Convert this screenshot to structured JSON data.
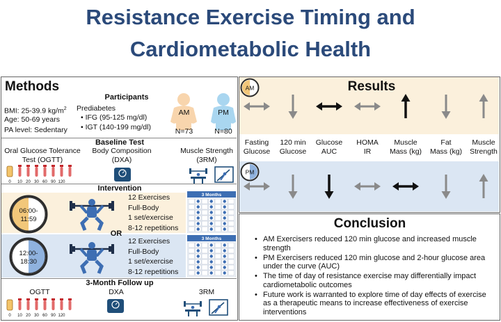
{
  "title": {
    "line1": "Resistance Exercise Timing and",
    "line2": "Cardiometabolic Health"
  },
  "colors": {
    "title_blue": "#2b4a7a",
    "am_peach": "#fbf0dc",
    "pm_blue": "#dbe6f3",
    "am_figure": "#f8d5ad",
    "pm_figure": "#a9d6f0",
    "lifter_blue": "#3d6eb3",
    "arrow_gray": "#888888"
  },
  "methods": {
    "heading": "Methods",
    "participants": {
      "heading": "Participants",
      "bmi_prefix": "BMI: 25-39.9 kg/m",
      "bmi_sup": "2",
      "age": "Age: 50-69 years",
      "pa": "PA level: Sedentary",
      "prediabetes": "Prediabetes",
      "ifg": "IFG (95-125 mg/dl)",
      "igt": "IGT (140-199 mg/dl)",
      "am_label": "AM",
      "pm_label": "PM",
      "am_n": "N=73",
      "pm_n": "N=80"
    },
    "baseline": {
      "heading": "Baseline Test",
      "ogtt_line1": "Oral Glucose Tolerance",
      "ogtt_line2": "Test (OGTT)",
      "body_line1": "Body Composition",
      "body_line2": "(DXA)",
      "strength_line1": "Muscle Strength",
      "strength_line2": "(3RM)",
      "tube_labels": [
        "0",
        "10",
        "20",
        "30",
        "60",
        "90",
        "120"
      ]
    },
    "intervention": {
      "heading": "Intervention",
      "or_label": "OR",
      "am_time_start": "06:00-",
      "am_time_end": "11:59",
      "pm_time_start": "12:00-",
      "pm_time_end": "18:30",
      "details": [
        "12 Exercises",
        "Full-Body",
        "1 set/exercise",
        "8-12 repetitions"
      ],
      "calendar_label": "3 Months"
    },
    "followup": {
      "heading": "3-Month Follow up",
      "ogtt": "OGTT",
      "dxa": "DXA",
      "rm": "3RM",
      "tube_labels": [
        "0",
        "10",
        "20",
        "30",
        "60",
        "90",
        "120"
      ]
    }
  },
  "results": {
    "heading": "Results",
    "am_badge": "AM",
    "pm_badge": "PM",
    "outcomes": [
      {
        "line1": "Fasting",
        "line2": "Glucose"
      },
      {
        "line1": "120 min",
        "line2": "Glucose"
      },
      {
        "line1": "Glucose",
        "line2": "AUC"
      },
      {
        "line1": "HOMA",
        "line2": "IR"
      },
      {
        "line1": "Muscle",
        "line2": "Mass (kg)"
      },
      {
        "line1": "Fat",
        "line2": "Mass (kg)"
      },
      {
        "line1": "Muscle",
        "line2": "Strength"
      }
    ],
    "am_arrows": [
      {
        "dir": "lr",
        "strong": false
      },
      {
        "dir": "down",
        "strong": false
      },
      {
        "dir": "lr",
        "strong": true
      },
      {
        "dir": "lr",
        "strong": false
      },
      {
        "dir": "up",
        "strong": true
      },
      {
        "dir": "down",
        "strong": false
      },
      {
        "dir": "up",
        "strong": false
      }
    ],
    "pm_arrows": [
      {
        "dir": "lr",
        "strong": false
      },
      {
        "dir": "down",
        "strong": false
      },
      {
        "dir": "down",
        "strong": true
      },
      {
        "dir": "lr",
        "strong": false
      },
      {
        "dir": "lr",
        "strong": true
      },
      {
        "dir": "down",
        "strong": false
      },
      {
        "dir": "up",
        "strong": false
      }
    ]
  },
  "conclusion": {
    "heading": "Conclusion",
    "bullets": [
      "AM Exercisers reduced 120 min glucose and increased muscle strength",
      "PM Exercisers reduced 120 min glucose and 2-hour glucose area under the curve (AUC)",
      "The time of day of resistance exercise may differentially impact cardiometabolic outcomes",
      "Future work is warranted to explore time of day effects of exercise as a therapeutic means to increase effectiveness of exercise interventions"
    ]
  }
}
